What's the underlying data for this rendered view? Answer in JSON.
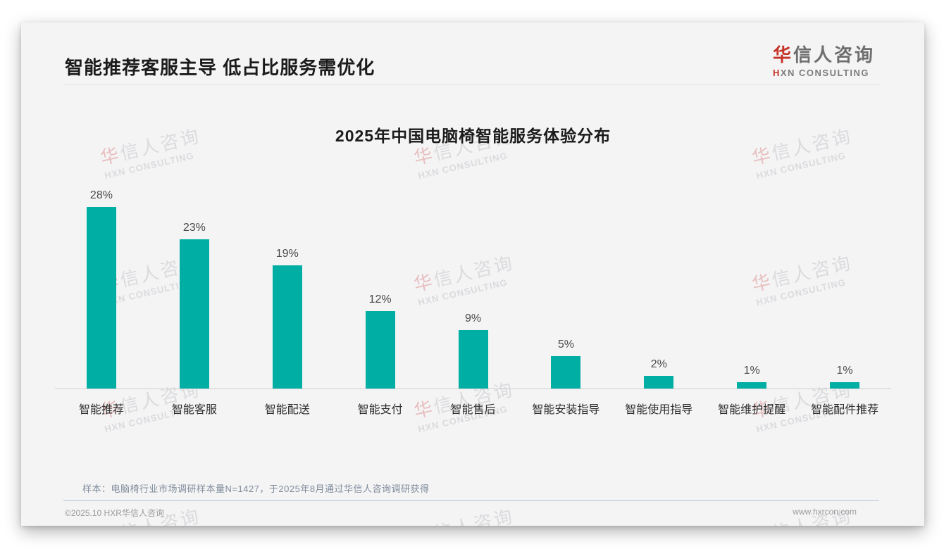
{
  "header": {
    "title": "智能推荐客服主导 低占比服务需优化",
    "logo": {
      "cn_first": "华",
      "cn_rest": "信人咨询",
      "en_first": "H",
      "en_rest": "XN CONSULTING"
    }
  },
  "watermark": {
    "cn_first": "华",
    "cn_rest": "信人咨询",
    "en": "HXN CONSULTING"
  },
  "chart_data": {
    "type": "bar",
    "title": "2025年中国电脑椅智能服务体验分布",
    "categories": [
      "智能推荐",
      "智能客服",
      "智能配送",
      "智能支付",
      "智能售后",
      "智能安装指导",
      "智能使用指导",
      "智能维护提醒",
      "智能配件推荐"
    ],
    "values": [
      28,
      23,
      19,
      12,
      9,
      5,
      2,
      1,
      1
    ],
    "value_labels": [
      "28%",
      "23%",
      "19%",
      "12%",
      "9%",
      "5%",
      "2%",
      "1%",
      "1%"
    ],
    "unit": "%",
    "bar_color": "#00aea4",
    "ylim": [
      0,
      28
    ],
    "grid": false,
    "legend": null,
    "xlabel": "",
    "ylabel": ""
  },
  "footnote": "样本：电脑椅行业市场调研样本量N=1427，于2025年8月通过华信人咨询调研获得",
  "footer": {
    "left": "©2025.10 HXR华信人咨询",
    "right": "www.hxrcon.com"
  }
}
